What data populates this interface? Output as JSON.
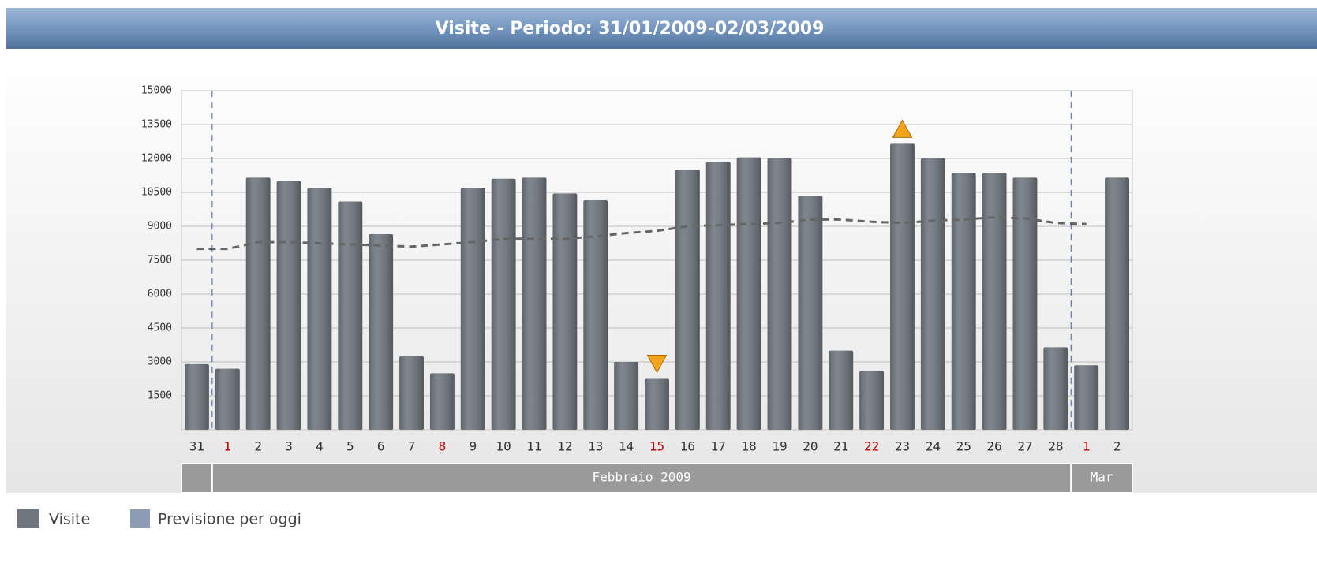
{
  "chart_data": {
    "type": "bar",
    "title": "Visite - Periodo: 31/01/2009-02/03/2009",
    "categories": [
      "31",
      "1",
      "2",
      "3",
      "4",
      "5",
      "6",
      "7",
      "8",
      "9",
      "10",
      "11",
      "12",
      "13",
      "14",
      "15",
      "16",
      "17",
      "18",
      "19",
      "20",
      "21",
      "22",
      "23",
      "24",
      "25",
      "26",
      "27",
      "28",
      "1",
      "2"
    ],
    "series": [
      {
        "name": "Visite",
        "color": "#6e757e",
        "values": [
          2900,
          2700,
          11150,
          11000,
          10700,
          10100,
          8650,
          3250,
          2500,
          10700,
          11100,
          11150,
          10450,
          10150,
          3000,
          2250,
          11500,
          11850,
          12050,
          12000,
          10350,
          3500,
          2600,
          12650,
          12000,
          11350,
          11350,
          11150,
          3650,
          2850,
          11150
        ]
      }
    ],
    "trend": {
      "color": "#666666",
      "values": [
        8000,
        8000,
        8300,
        8300,
        8250,
        8200,
        8150,
        8100,
        8200,
        8300,
        8450,
        8450,
        8450,
        8550,
        8700,
        8800,
        9000,
        9050,
        9100,
        9150,
        9300,
        9300,
        9200,
        9150,
        9250,
        9300,
        9400,
        9350,
        9150,
        9100,
        null
      ]
    },
    "forecast_legend": {
      "name": "Previsione per oggi",
      "color": "#8e9bb5"
    },
    "weekend_indices": [
      1,
      8,
      15,
      22,
      29
    ],
    "weekend_color": "#c00000",
    "months": [
      {
        "label": null,
        "days": 1
      },
      {
        "label": "Febbraio 2009",
        "days": 28
      },
      {
        "label": "Mar",
        "days": 2
      }
    ],
    "ylim": [
      0,
      15000
    ],
    "yticks": [
      1500,
      3000,
      4500,
      6000,
      7500,
      9000,
      10500,
      12000,
      13500,
      15000
    ],
    "grid": true
  }
}
